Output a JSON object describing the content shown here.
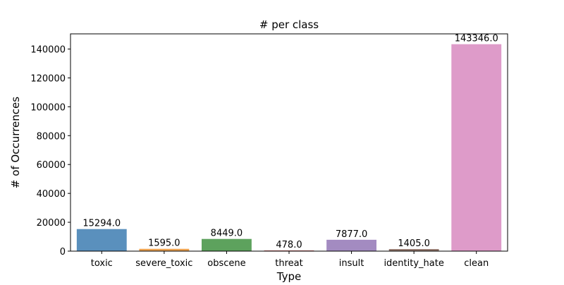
{
  "chart_data": {
    "type": "bar",
    "title": "# per class",
    "xlabel": "Type",
    "ylabel": "# of Occurrences",
    "categories": [
      "toxic",
      "severe_toxic",
      "obscene",
      "threat",
      "insult",
      "identity_hate",
      "clean"
    ],
    "values": [
      15294,
      1595,
      8449,
      478,
      7877,
      1405,
      143346
    ],
    "data_labels": [
      "15294.0",
      "1595.0",
      "8449.0",
      "478.0",
      "7877.0",
      "1405.0",
      "143346.0"
    ],
    "ylim": [
      0,
      150500
    ],
    "yticks": [
      0,
      20000,
      40000,
      60000,
      80000,
      100000,
      120000,
      140000
    ],
    "ytick_labels": [
      "0",
      "20000",
      "40000",
      "60000",
      "80000",
      "100000",
      "120000",
      "140000"
    ],
    "grid": false,
    "legend": "none",
    "colors": [
      "#5a90bd",
      "#efa350",
      "#5da25d",
      "#c85f5e",
      "#a38bc1",
      "#8f7268",
      "#de9bc9"
    ]
  }
}
